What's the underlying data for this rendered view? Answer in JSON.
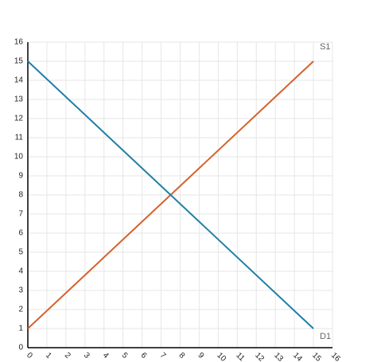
{
  "chart_data": {
    "type": "line",
    "x": [
      0,
      15
    ],
    "series": [
      {
        "name": "S1",
        "color": "#d4622a",
        "values": [
          1,
          15
        ]
      },
      {
        "name": "D1",
        "color": "#1f7fa6",
        "values": [
          15,
          1
        ]
      }
    ],
    "xlim": [
      0,
      16
    ],
    "xticks": [
      0,
      1,
      2,
      3,
      4,
      5,
      6,
      7,
      8,
      9,
      10,
      11,
      12,
      13,
      14,
      15,
      16
    ],
    "ylim": [
      0,
      16
    ],
    "yticks": [
      0,
      1,
      2,
      3,
      4,
      5,
      6,
      7,
      8,
      9,
      10,
      11,
      12,
      13,
      14,
      15,
      16
    ],
    "grid": true,
    "legend": "line-end"
  }
}
